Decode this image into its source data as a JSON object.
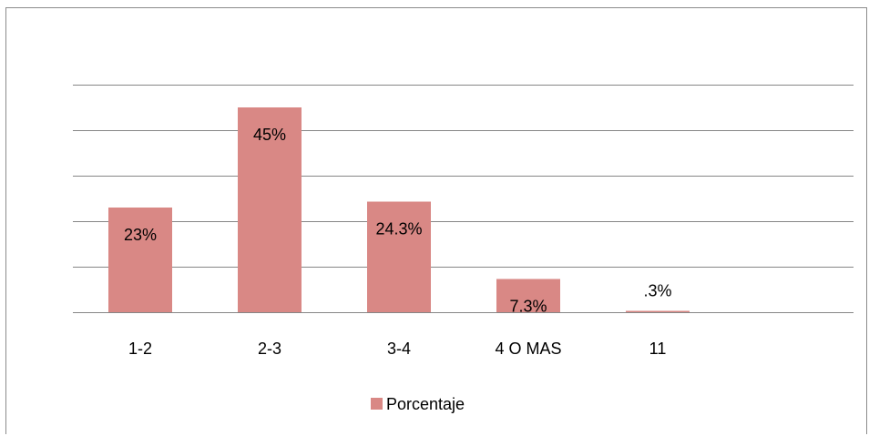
{
  "chart_data": {
    "type": "bar",
    "categories": [
      "1-2",
      "2-3",
      "3-4",
      "4 O MAS",
      "11"
    ],
    "series": [
      {
        "name": "Porcentaje",
        "values": [
          23,
          45,
          24.3,
          7.3,
          0.3
        ],
        "data_labels": [
          "23%",
          "45%",
          "24.3%",
          "7.3%",
          ".3%"
        ],
        "color": "#d98885"
      }
    ],
    "ylim": [
      0,
      50
    ],
    "grid": true,
    "legend": "bottom",
    "gridline_color": "#868686"
  }
}
